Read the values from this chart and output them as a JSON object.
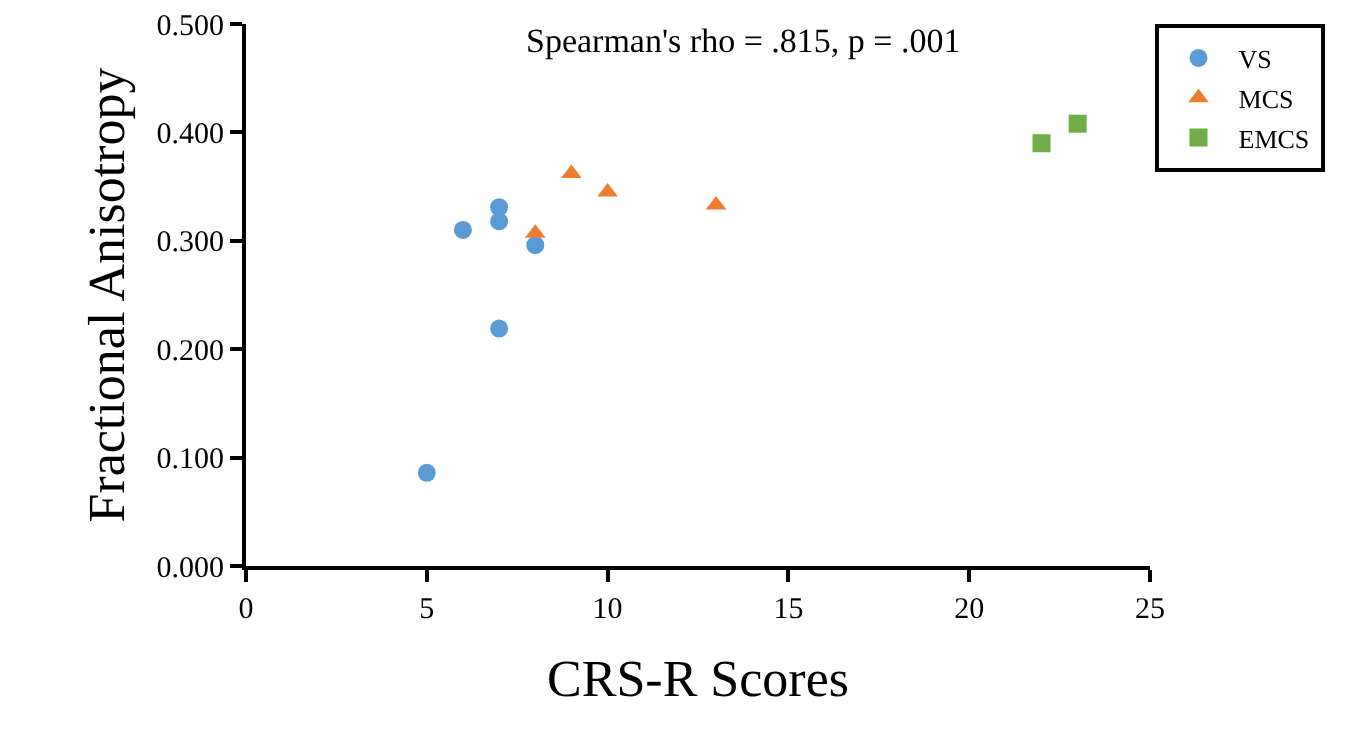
{
  "chart_data": {
    "type": "scatter",
    "xlabel": "CRS-R Scores",
    "ylabel": "Fractional Anisotropy",
    "annotations": [
      "Spearman's rho = .815, p = .001"
    ],
    "series": [
      {
        "name": "VS",
        "color": "#5b9bd5",
        "marker": "circle",
        "x": [
          5,
          6,
          7,
          7,
          7,
          8
        ],
        "values": [
          0.086,
          0.31,
          0.331,
          0.318,
          0.219,
          0.296
        ]
      },
      {
        "name": "MCS",
        "color": "#ed7d31",
        "marker": "triangle",
        "x": [
          8,
          9,
          10,
          13
        ],
        "values": [
          0.307,
          0.362,
          0.345,
          0.333
        ]
      },
      {
        "name": "EMCS",
        "color": "#70ad47",
        "marker": "square",
        "x": [
          22,
          23
        ],
        "values": [
          0.39,
          0.408
        ]
      }
    ],
    "xlim": [
      0,
      25
    ],
    "xticks": [
      0,
      5,
      10,
      15,
      20,
      25
    ],
    "ylim": [
      0,
      0.5
    ],
    "yticks": [
      {
        "value": 0,
        "label": "0.000"
      },
      {
        "value": 0.1,
        "label": "0.100"
      },
      {
        "value": 0.2,
        "label": "0.200"
      },
      {
        "value": 0.3,
        "label": "0.300"
      },
      {
        "value": 0.4,
        "label": "0.400"
      },
      {
        "value": 0.5,
        "label": "0.500"
      }
    ],
    "grid": false,
    "legend": "top right"
  }
}
